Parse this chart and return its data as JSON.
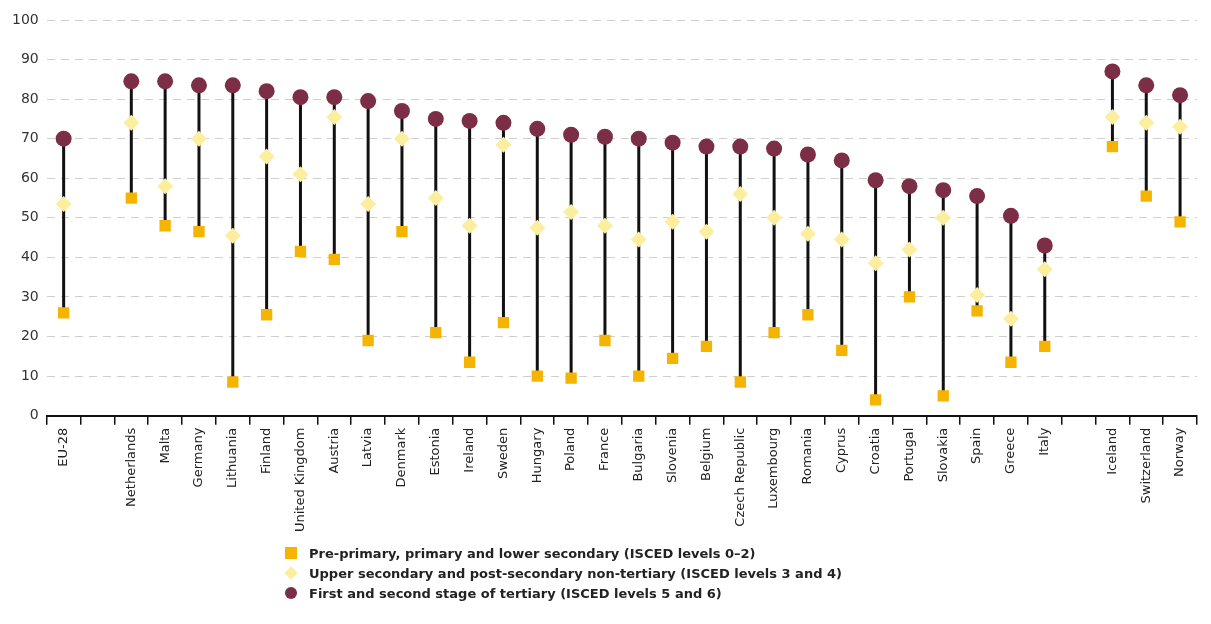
{
  "chart_data": {
    "type": "scatter",
    "categories": [
      "EU-28",
      null,
      "Netherlands",
      "Malta",
      "Germany",
      "Lithuania",
      "Finland",
      "United Kingdom",
      "Austria",
      "Latvia",
      "Denmark",
      "Estonia",
      "Ireland",
      "Sweden",
      "Hungary",
      "Poland",
      "France",
      "Bulgaria",
      "Slovenia",
      "Belgium",
      "Czech Republic",
      "Luxembourg",
      "Romania",
      "Cyprus",
      "Croatia",
      "Portugal",
      "Slovakia",
      "Spain",
      "Greece",
      "Italy",
      null,
      "Iceland",
      "Switzerland",
      "Norway"
    ],
    "series": [
      {
        "name": "Pre-primary, primary and lower secondary (ISCED levels 0–2)",
        "color": "#f5b400",
        "marker": "square",
        "values": [
          26,
          null,
          55,
          48,
          46.5,
          8.5,
          25.5,
          41.5,
          39.5,
          19,
          46.5,
          21,
          13.5,
          23.5,
          10,
          9.5,
          19,
          10,
          14.5,
          17.5,
          8.5,
          21,
          25.5,
          16.5,
          4,
          30,
          5,
          26.5,
          13.5,
          17.5,
          null,
          68,
          55.5,
          49
        ]
      },
      {
        "name": "Upper secondary and post-secondary non-tertiary (ISCED levels 3 and 4)",
        "color": "#fbee9e",
        "marker": "diamond",
        "values": [
          53.5,
          null,
          74,
          58,
          70,
          45.5,
          65.5,
          61,
          75.5,
          53.5,
          70,
          55,
          48,
          68.5,
          47.5,
          51.5,
          48,
          44.5,
          49,
          46.5,
          56,
          50,
          46,
          44.5,
          38.5,
          42,
          50,
          30.5,
          24.5,
          37,
          null,
          75.5,
          74,
          73
        ]
      },
      {
        "name": "First and second stage of tertiary (ISCED levels 5 and 6)",
        "color": "#7b2e45",
        "marker": "circle",
        "values": [
          70,
          null,
          84.5,
          84.5,
          83.5,
          83.5,
          82,
          80.5,
          80.5,
          79.5,
          77,
          75,
          74.5,
          74,
          72.5,
          71,
          70.5,
          70,
          69,
          68,
          68,
          67.5,
          66,
          64.5,
          59.5,
          58,
          57,
          55.5,
          50.5,
          43,
          null,
          87,
          83.5,
          81
        ]
      }
    ],
    "ylim": [
      0,
      100
    ],
    "yticks": [
      0,
      10,
      20,
      30,
      40,
      50,
      60,
      70,
      80,
      90,
      100
    ],
    "grid": "y",
    "legend": "bottom"
  }
}
